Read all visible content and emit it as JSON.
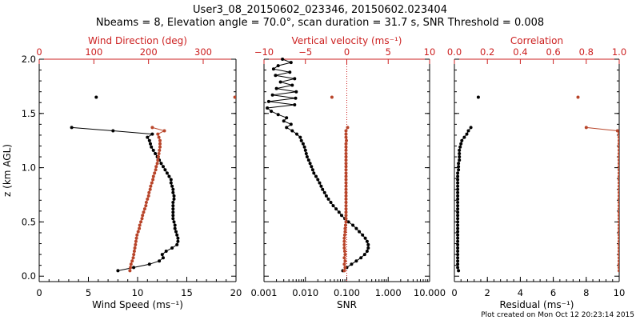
{
  "title_line1": "User3_08_20150602_023346, 20150602.023404",
  "title_line2": "Nbeams = 8, Elevation angle = 70.0°, scan duration = 31.7 s, SNR Threshold = 0.008",
  "footer": "Plot created on Mon Oct 12 20:23:14 2015",
  "colors": {
    "black": "#000000",
    "red": "#cc2020",
    "brown": "#b8452a"
  },
  "chart_data": [
    {
      "type": "scatter",
      "name": "wind",
      "xlabel": "Wind Speed (ms⁻¹)",
      "ylabel": "z (km AGL)",
      "top_label": "Wind Direction (deg)",
      "xlim": [
        0,
        20
      ],
      "ylim": [
        -0.05,
        2.0
      ],
      "x_ticks": [
        "0",
        "5",
        "10",
        "15",
        "20"
      ],
      "y_ticks": [
        "0.0",
        "0.5",
        "1.0",
        "1.5",
        "2.0"
      ],
      "top_xlim": [
        0,
        360
      ],
      "top_ticks": [
        "0",
        "100",
        "200",
        "300"
      ],
      "series": [
        {
          "name": "Wind Speed",
          "color": "black",
          "z": [
            0.05,
            0.08,
            0.11,
            0.14,
            0.17,
            0.2,
            0.23,
            0.26,
            0.29,
            0.32,
            0.35,
            0.38,
            0.41,
            0.44,
            0.47,
            0.5,
            0.53,
            0.56,
            0.59,
            0.62,
            0.65,
            0.68,
            0.71,
            0.74,
            0.77,
            0.8,
            0.83,
            0.86,
            0.89,
            0.92,
            0.95,
            0.98,
            1.01,
            1.04,
            1.07,
            1.1,
            1.13,
            1.16,
            1.19,
            1.22,
            1.25,
            1.28,
            1.31,
            1.34,
            1.37
          ],
          "x": [
            8.0,
            9.6,
            11.2,
            12.2,
            12.6,
            12.5,
            12.9,
            13.5,
            14.0,
            14.1,
            14.1,
            14.0,
            13.9,
            13.8,
            13.8,
            13.7,
            13.6,
            13.6,
            13.6,
            13.6,
            13.6,
            13.6,
            13.7,
            13.7,
            13.6,
            13.6,
            13.5,
            13.4,
            13.4,
            13.2,
            13.0,
            12.8,
            12.6,
            12.4,
            12.2,
            12.0,
            11.8,
            11.6,
            11.4,
            11.3,
            11.2,
            11.0,
            11.5,
            7.5,
            3.3
          ]
        },
        {
          "name": "Wind Speed (upper)",
          "color": "black",
          "z": [
            1.65
          ],
          "x": [
            5.8
          ]
        },
        {
          "name": "Wind Direction",
          "color": "brown",
          "axis": "top",
          "z": [
            0.05,
            0.08,
            0.11,
            0.14,
            0.17,
            0.2,
            0.23,
            0.26,
            0.29,
            0.32,
            0.35,
            0.38,
            0.41,
            0.44,
            0.47,
            0.5,
            0.53,
            0.56,
            0.59,
            0.62,
            0.65,
            0.68,
            0.71,
            0.74,
            0.77,
            0.8,
            0.83,
            0.86,
            0.89,
            0.92,
            0.95,
            0.98,
            1.01,
            1.04,
            1.07,
            1.1,
            1.13,
            1.16,
            1.19,
            1.22,
            1.25,
            1.28,
            1.31,
            1.34,
            1.37
          ],
          "x": [
            166,
            167,
            168,
            170,
            172,
            173,
            174,
            175,
            176,
            177,
            178,
            179,
            181,
            183,
            184,
            186,
            188,
            189,
            191,
            193,
            195,
            196,
            198,
            200,
            201,
            203,
            204,
            206,
            208,
            209,
            211,
            213,
            214,
            216,
            217,
            218,
            219,
            220,
            221,
            221,
            221,
            219,
            217,
            229,
            207
          ]
        },
        {
          "name": "Wind Direction (upper)",
          "color": "brown",
          "axis": "top",
          "z": [
            1.65
          ],
          "x": [
            358
          ]
        }
      ]
    },
    {
      "type": "scatter",
      "name": "snr",
      "xlabel": "SNR",
      "top_label": "Vertical velocity (ms⁻¹)",
      "xscale": "log",
      "xlim": [
        0.001,
        10
      ],
      "ylim": [
        -0.05,
        2.0
      ],
      "x_ticks": [
        "0.001",
        "0.010",
        "0.100",
        "1.000",
        "10.000"
      ],
      "top_xlim": [
        -10,
        10
      ],
      "top_ticks": [
        "−10",
        "−5",
        "0",
        "5",
        "10"
      ],
      "series": [
        {
          "name": "SNR",
          "color": "black",
          "z": [
            0.05,
            0.08,
            0.11,
            0.14,
            0.17,
            0.2,
            0.23,
            0.26,
            0.29,
            0.32,
            0.35,
            0.38,
            0.41,
            0.44,
            0.47,
            0.5,
            0.53,
            0.56,
            0.59,
            0.62,
            0.65,
            0.68,
            0.71,
            0.74,
            0.77,
            0.8,
            0.83,
            0.86,
            0.89,
            0.92,
            0.95,
            0.98,
            1.01,
            1.04,
            1.07,
            1.1,
            1.13,
            1.16,
            1.19,
            1.22,
            1.25,
            1.28,
            1.31,
            1.34,
            1.37,
            1.4,
            1.43,
            1.46,
            1.49,
            1.52,
            1.55,
            1.58,
            1.61,
            1.64,
            1.67,
            1.7,
            1.73,
            1.76,
            1.79,
            1.82,
            1.85,
            1.88,
            1.91,
            1.94,
            1.97,
            2.0
          ],
          "x": [
            0.08,
            0.1,
            0.13,
            0.17,
            0.22,
            0.27,
            0.31,
            0.33,
            0.33,
            0.31,
            0.28,
            0.24,
            0.2,
            0.17,
            0.14,
            0.11,
            0.09,
            0.075,
            0.065,
            0.055,
            0.047,
            0.041,
            0.036,
            0.032,
            0.029,
            0.026,
            0.024,
            0.022,
            0.02,
            0.018,
            0.016,
            0.015,
            0.014,
            0.013,
            0.012,
            0.011,
            0.0105,
            0.01,
            0.0095,
            0.0088,
            0.008,
            0.0075,
            0.0062,
            0.0048,
            0.0035,
            0.0045,
            0.003,
            0.0035,
            0.0022,
            0.0015,
            0.0012,
            0.0055,
            0.0013,
            0.0058,
            0.0016,
            0.006,
            0.002,
            0.0048,
            0.0025,
            0.0055,
            0.0019,
            0.0042,
            0.0017,
            0.0022,
            0.0045,
            0.0028
          ]
        },
        {
          "name": "Vertical velocity",
          "color": "brown",
          "axis": "top",
          "z": [
            0.05,
            0.08,
            0.11,
            0.14,
            0.17,
            0.2,
            0.23,
            0.26,
            0.29,
            0.32,
            0.35,
            0.38,
            0.41,
            0.44,
            0.47,
            0.5,
            0.53,
            0.56,
            0.59,
            0.62,
            0.65,
            0.68,
            0.71,
            0.74,
            0.77,
            0.8,
            0.83,
            0.86,
            0.89,
            0.92,
            0.95,
            0.98,
            1.01,
            1.04,
            1.07,
            1.1,
            1.13,
            1.16,
            1.19,
            1.22,
            1.25,
            1.28,
            1.31,
            1.34,
            1.37
          ],
          "x": [
            -0.3,
            -0.2,
            -0.3,
            -0.2,
            -0.3,
            -0.2,
            -0.25,
            -0.3,
            -0.3,
            -0.3,
            -0.3,
            -0.25,
            -0.2,
            -0.2,
            -0.15,
            -0.1,
            -0.1,
            -0.1,
            -0.1,
            -0.1,
            -0.1,
            -0.1,
            -0.1,
            -0.1,
            -0.1,
            -0.1,
            -0.1,
            -0.1,
            -0.1,
            -0.1,
            -0.1,
            -0.1,
            -0.1,
            -0.1,
            -0.1,
            -0.1,
            -0.1,
            -0.1,
            -0.1,
            -0.1,
            -0.05,
            -0.1,
            -0.1,
            -0.1,
            0.1
          ]
        },
        {
          "name": "Vertical velocity (upper)",
          "color": "brown",
          "axis": "top",
          "z": [
            1.65
          ],
          "x": [
            -1.8
          ]
        }
      ],
      "reference_line": {
        "axis": "top",
        "x": 0,
        "color": "red",
        "style": "dotted"
      }
    },
    {
      "type": "scatter",
      "name": "residual",
      "xlabel": "Residual (ms⁻¹)",
      "top_label": "Correlation",
      "xlim": [
        0,
        10
      ],
      "ylim": [
        -0.05,
        2.0
      ],
      "x_ticks": [
        "0",
        "2",
        "4",
        "6",
        "8",
        "10"
      ],
      "top_xlim": [
        0,
        1
      ],
      "top_ticks": [
        "0.0",
        "0.2",
        "0.4",
        "0.6",
        "0.8",
        "1.0"
      ],
      "series": [
        {
          "name": "Residual",
          "color": "black",
          "z": [
            0.05,
            0.08,
            0.11,
            0.14,
            0.17,
            0.2,
            0.23,
            0.26,
            0.29,
            0.32,
            0.35,
            0.38,
            0.41,
            0.44,
            0.47,
            0.5,
            0.53,
            0.56,
            0.59,
            0.62,
            0.65,
            0.68,
            0.71,
            0.74,
            0.77,
            0.8,
            0.83,
            0.86,
            0.89,
            0.92,
            0.95,
            0.98,
            1.01,
            1.04,
            1.07,
            1.1,
            1.13,
            1.16,
            1.19,
            1.22,
            1.25,
            1.28,
            1.31,
            1.34,
            1.37
          ],
          "x": [
            0.25,
            0.2,
            0.2,
            0.2,
            0.2,
            0.2,
            0.2,
            0.2,
            0.2,
            0.2,
            0.2,
            0.2,
            0.2,
            0.2,
            0.2,
            0.2,
            0.2,
            0.2,
            0.2,
            0.2,
            0.2,
            0.2,
            0.2,
            0.2,
            0.2,
            0.2,
            0.2,
            0.2,
            0.2,
            0.2,
            0.2,
            0.25,
            0.25,
            0.25,
            0.3,
            0.3,
            0.3,
            0.3,
            0.35,
            0.4,
            0.45,
            0.6,
            0.75,
            0.85,
            1.0
          ]
        },
        {
          "name": "Residual (upper)",
          "color": "black",
          "z": [
            1.65
          ],
          "x": [
            1.45
          ]
        },
        {
          "name": "Correlation",
          "color": "brown",
          "axis": "top",
          "z": [
            0.05,
            0.08,
            0.11,
            0.14,
            0.17,
            0.2,
            0.23,
            0.26,
            0.29,
            0.32,
            0.35,
            0.38,
            0.41,
            0.44,
            0.47,
            0.5,
            0.53,
            0.56,
            0.59,
            0.62,
            0.65,
            0.68,
            0.71,
            0.74,
            0.77,
            0.8,
            0.83,
            0.86,
            0.89,
            0.92,
            0.95,
            0.98,
            1.01,
            1.04,
            1.07,
            1.1,
            1.13,
            1.16,
            1.19,
            1.22,
            1.25,
            1.28,
            1.31,
            1.34,
            1.37
          ],
          "x": [
            1.0,
            1.0,
            1.0,
            1.0,
            1.0,
            1.0,
            1.0,
            1.0,
            1.0,
            1.0,
            1.0,
            1.0,
            1.0,
            1.0,
            1.0,
            1.0,
            1.0,
            1.0,
            1.0,
            1.0,
            1.0,
            1.0,
            1.0,
            1.0,
            1.0,
            1.0,
            1.0,
            1.0,
            1.0,
            1.0,
            1.0,
            1.0,
            1.0,
            1.0,
            1.0,
            1.0,
            1.0,
            1.0,
            1.0,
            1.0,
            1.0,
            1.0,
            1.0,
            0.99,
            0.8
          ]
        },
        {
          "name": "Correlation (upper)",
          "color": "brown",
          "axis": "top",
          "z": [
            1.65
          ],
          "x": [
            0.75
          ]
        }
      ]
    }
  ]
}
